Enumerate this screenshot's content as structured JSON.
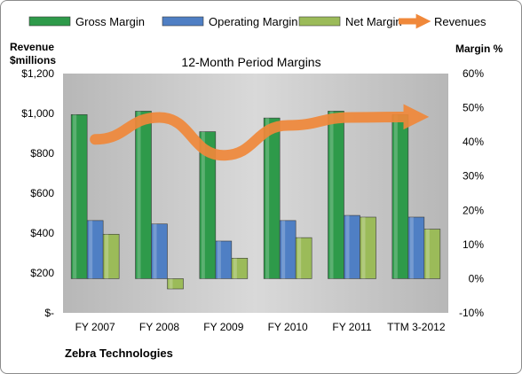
{
  "chart_data": {
    "type": "bar",
    "title": "12-Month Period Margins",
    "company": "Zebra Technologies",
    "left_axis_title": [
      "Revenue",
      "$millions"
    ],
    "right_axis_title": "Margin %",
    "categories": [
      "FY 2007",
      "FY 2008",
      "FY 2009",
      "FY 2010",
      "FY 2011",
      "TTM 3-2012"
    ],
    "left_ticks": [
      "$-",
      "$200",
      "$400",
      "$600",
      "$800",
      "$1,000",
      "$1,200"
    ],
    "right_ticks": [
      "-10%",
      "0%",
      "10%",
      "20%",
      "30%",
      "40%",
      "50%",
      "60%"
    ],
    "margin_ylim": [
      -10,
      60
    ],
    "revenue_ylim": [
      0,
      1200
    ],
    "series": [
      {
        "name": "Gross Margin",
        "axis": "right",
        "kind": "bar",
        "color": "#2e9a4a",
        "values": [
          48,
          49,
          43,
          47,
          49,
          48
        ]
      },
      {
        "name": "Operating Margin",
        "axis": "right",
        "kind": "bar",
        "color": "#4f7fc4",
        "values": [
          17,
          16,
          11,
          17,
          18.5,
          18
        ]
      },
      {
        "name": "Net Margin",
        "axis": "right",
        "kind": "bar",
        "color": "#9bbb59",
        "values": [
          13,
          -3,
          6,
          12,
          18,
          14.5
        ]
      },
      {
        "name": "Revenues",
        "axis": "left",
        "kind": "line",
        "color": "#f0883a",
        "values": [
          870,
          980,
          790,
          940,
          980,
          983
        ]
      }
    ],
    "grid": false,
    "legend": "top"
  }
}
